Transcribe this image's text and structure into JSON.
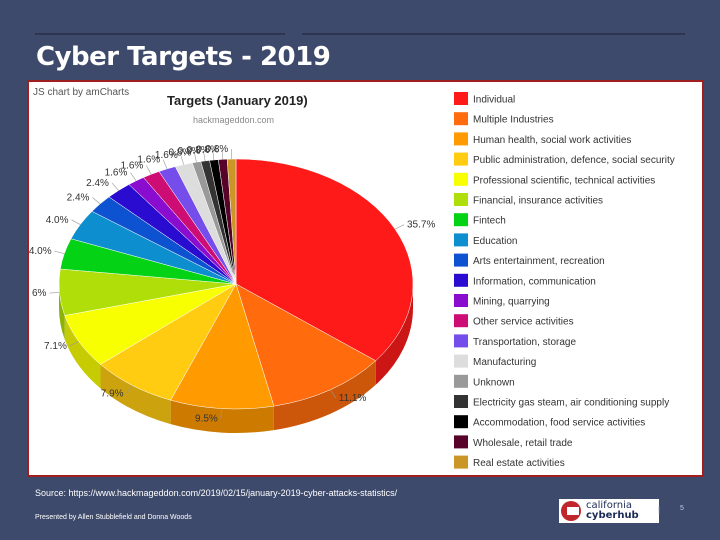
{
  "slide": {
    "title": "Cyber Targets - 2019",
    "source": "Source: https://www.hackmageddon.com/2019/02/15/january-2019-cyber-attacks-statistics/",
    "presenter": "Presented by Allen Stubblefield and Donna Woods",
    "page_number": "5",
    "logo_line1": "california",
    "logo_line2": "cyberhub"
  },
  "chart_data": {
    "type": "pie",
    "credit": "JS chart by amCharts",
    "title": "Targets (January 2019)",
    "watermark": "hackmageddon.com",
    "legend_position": "right",
    "slices": [
      {
        "category": "Individual",
        "value": 35.7,
        "label": "35.7%",
        "color": "#ff1a1a"
      },
      {
        "category": "Multiple Industries",
        "value": 11.1,
        "label": "11.1%",
        "color": "#ff6b0d"
      },
      {
        "category": "Human health, social work activities",
        "value": 9.5,
        "label": "9.5%",
        "color": "#ff9a00"
      },
      {
        "category": "Public administration, defence, social security",
        "value": 7.9,
        "label": "7.9%",
        "color": "#ffcc11"
      },
      {
        "category": "Professional scientific, technical activities",
        "value": 7.1,
        "label": "7.1%",
        "color": "#f8ff01"
      },
      {
        "category": "Financial, insurance activities",
        "value": 6,
        "label": "6%",
        "color": "#b0de09"
      },
      {
        "category": "Fintech",
        "value": 4.0,
        "label": "4.0%",
        "color": "#04d215"
      },
      {
        "category": "Education",
        "value": 4.0,
        "label": "4.0%",
        "color": "#0d8ecf"
      },
      {
        "category": "Arts entertainment, recreation",
        "value": 2.4,
        "label": "2.4%",
        "color": "#0d52d1"
      },
      {
        "category": "Information, communication",
        "value": 2.4,
        "label": "2.4%",
        "color": "#2a0cd0"
      },
      {
        "category": "Mining, quarrying",
        "value": 1.6,
        "label": "1.6%",
        "color": "#8a0ccf"
      },
      {
        "category": "Other service activities",
        "value": 1.6,
        "label": "1.6%",
        "color": "#cd0d74"
      },
      {
        "category": "Transportation, storage",
        "value": 1.6,
        "label": "1.6%",
        "color": "#754deb"
      },
      {
        "category": "Manufacturing",
        "value": 1.6,
        "label": "1.6%",
        "color": "#dddddd"
      },
      {
        "category": "Unknown",
        "value": 0.8,
        "label": "0.8%",
        "color": "#999999"
      },
      {
        "category": "Electricity gas steam, air conditioning supply",
        "value": 0.8,
        "label": "0.8%",
        "color": "#333333"
      },
      {
        "category": "Accommodation, food service activities",
        "value": 0.8,
        "label": "0.8%",
        "color": "#000000"
      },
      {
        "category": "Wholesale, retail trade",
        "value": 0.8,
        "label": "0.8%",
        "color": "#57032a"
      },
      {
        "category": "Real estate activities",
        "value": 0.8,
        "label": "0.8%",
        "color": "#ca9726"
      }
    ]
  }
}
